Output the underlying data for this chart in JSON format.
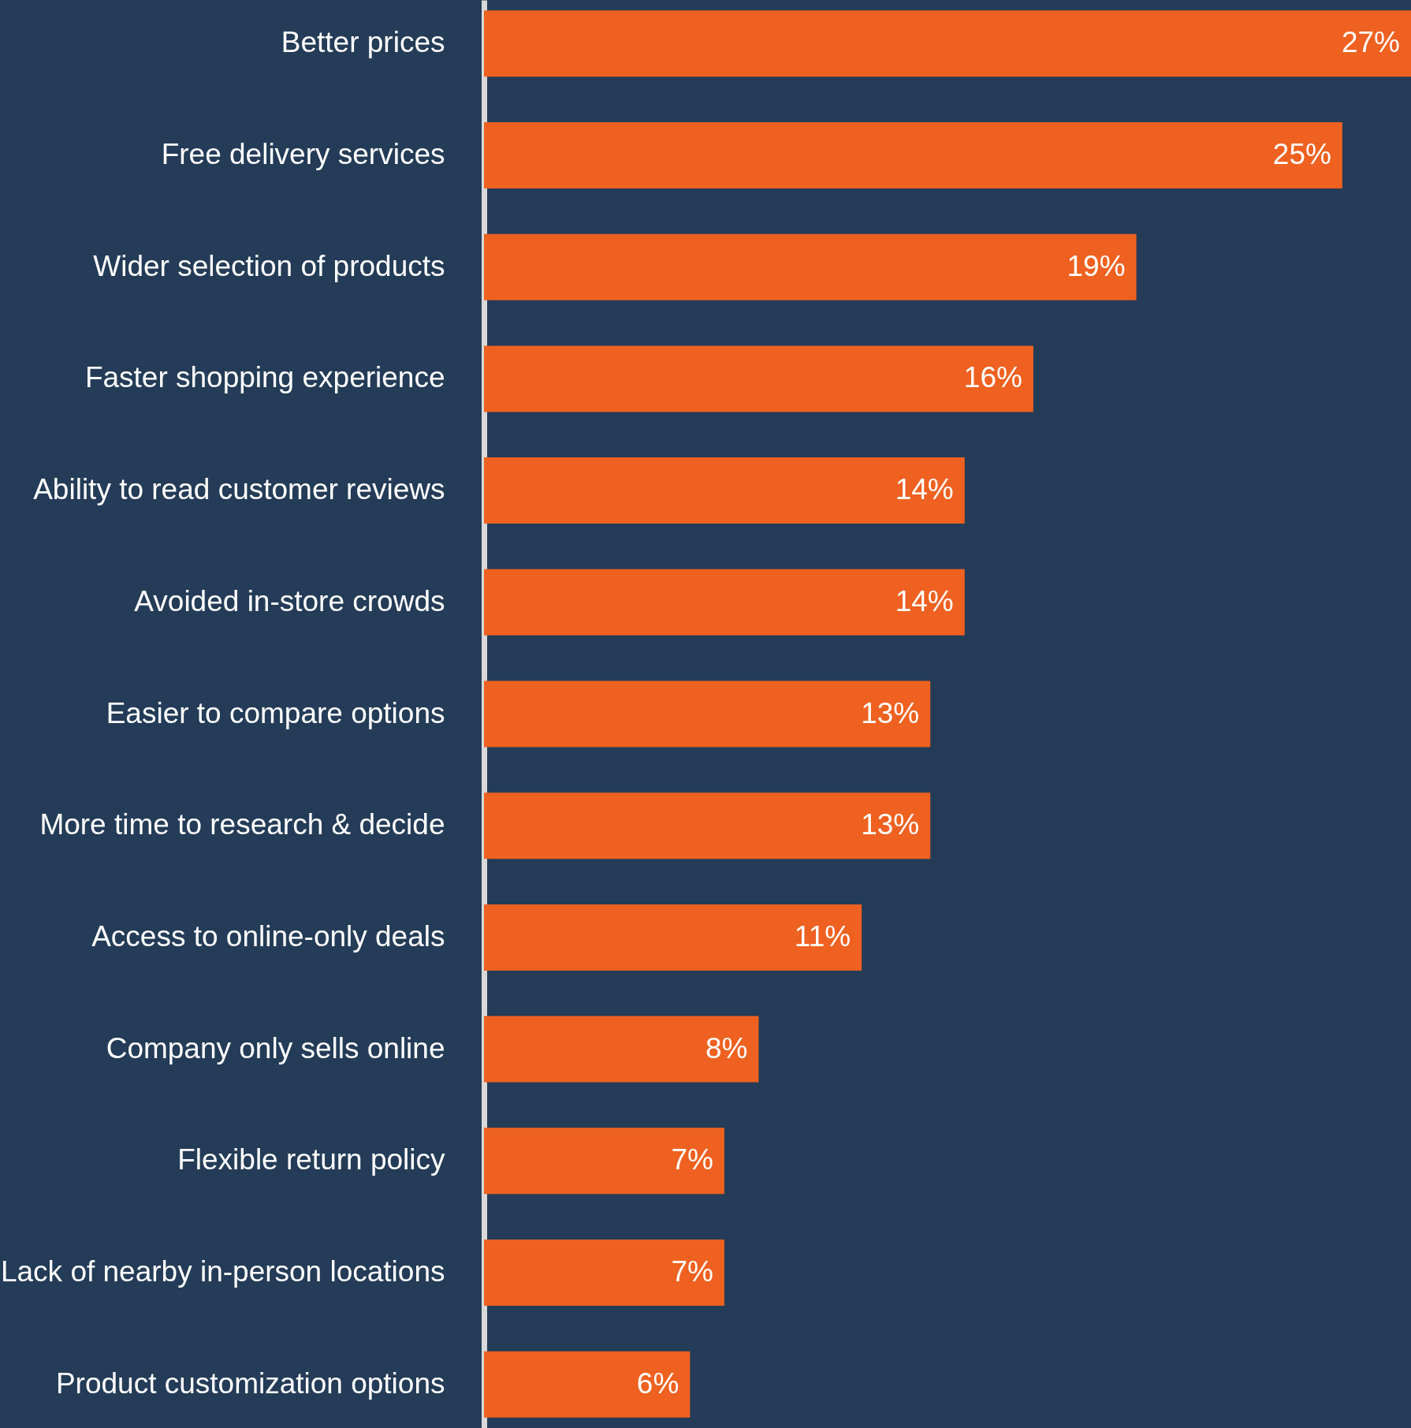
{
  "chart_data": {
    "type": "bar",
    "orientation": "horizontal",
    "color": "#ee6120",
    "categories": [
      "Better prices",
      "Free delivery services",
      "Wider selection of products",
      "Faster shopping experience",
      "Ability to read customer reviews",
      "Avoided in-store crowds",
      "Easier to compare options",
      "More time to research & decide",
      "Access to online-only deals",
      "Company only sells online",
      "Flexible return policy",
      "Lack of nearby in-person locations",
      "Product customization options"
    ],
    "values": [
      27,
      25,
      19,
      16,
      14,
      14,
      13,
      13,
      11,
      8,
      7,
      7,
      6
    ],
    "value_labels": [
      "27%",
      "25%",
      "19%",
      "16%",
      "14%",
      "14%",
      "13%",
      "13%",
      "11%",
      "8%",
      "7%",
      "7%",
      "6%"
    ],
    "grid": false
  }
}
